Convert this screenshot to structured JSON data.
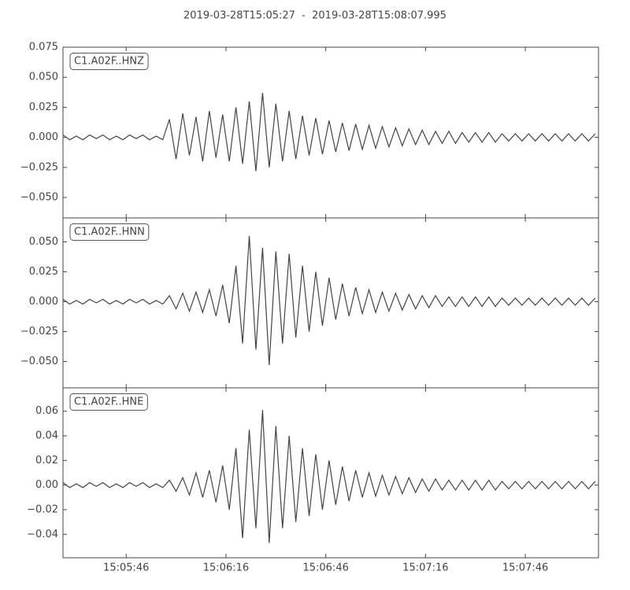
{
  "title": "2019-03-28T15:05:27  -  2019-03-28T15:08:07.995",
  "chart_data": [
    {
      "type": "line",
      "label": "C1.A02F..HNZ",
      "x": [
        54327,
        54329,
        54331,
        54333,
        54335,
        54337,
        54339,
        54341,
        54343,
        54345,
        54347,
        54349,
        54351,
        54353,
        54355,
        54357,
        54359,
        54361,
        54363,
        54365,
        54367,
        54369,
        54371,
        54373,
        54375,
        54377,
        54379,
        54381,
        54383,
        54385,
        54387,
        54389,
        54391,
        54393,
        54395,
        54397,
        54399,
        54401,
        54403,
        54405,
        54407,
        54409,
        54411,
        54413,
        54415,
        54417,
        54419,
        54421,
        54423,
        54425,
        54427,
        54429,
        54431,
        54433,
        54435,
        54437,
        54439,
        54441,
        54443,
        54445,
        54447,
        54449,
        54451,
        54453,
        54455,
        54457,
        54459,
        54461,
        54463,
        54465,
        54467,
        54469,
        54471,
        54473,
        54475,
        54477,
        54479,
        54481,
        54483,
        54485,
        54487
      ],
      "series": [
        {
          "color": "#444444",
          "values": [
            0.002,
            -0.002,
            0.001,
            -0.002,
            0.002,
            -0.001,
            0.002,
            -0.002,
            0.001,
            -0.002,
            0.002,
            -0.001,
            0.002,
            -0.002,
            0.001,
            -0.002,
            0.015,
            -0.018,
            0.02,
            -0.015,
            0.017,
            -0.02,
            0.022,
            -0.017,
            0.019,
            -0.02,
            0.025,
            -0.022,
            0.03,
            -0.028,
            0.037,
            -0.025,
            0.028,
            -0.02,
            0.022,
            -0.018,
            0.018,
            -0.015,
            0.016,
            -0.014,
            0.014,
            -0.012,
            0.012,
            -0.011,
            0.011,
            -0.01,
            0.01,
            -0.009,
            0.009,
            -0.008,
            0.008,
            -0.007,
            0.007,
            -0.006,
            0.006,
            -0.006,
            0.005,
            -0.005,
            0.005,
            -0.005,
            0.004,
            -0.004,
            0.004,
            -0.004,
            0.004,
            -0.004,
            0.003,
            -0.003,
            0.003,
            -0.003,
            0.003,
            -0.003,
            0.003,
            -0.003,
            0.003,
            -0.003,
            0.003,
            -0.003,
            0.003,
            -0.003,
            0.003
          ]
        }
      ],
      "xlim": [
        54327,
        54488
      ],
      "ylim": [
        -0.067,
        0.075
      ],
      "yticks": [
        {
          "value": -0.05,
          "label": "−0.050"
        },
        {
          "value": -0.025,
          "label": "−0.025"
        },
        {
          "value": 0,
          "label": "0.000"
        },
        {
          "value": 0.025,
          "label": "0.025"
        },
        {
          "value": 0.05,
          "label": "0.050"
        },
        {
          "value": 0.075,
          "label": "0.075"
        }
      ]
    },
    {
      "type": "line",
      "label": "C1.A02F..HNN",
      "x": [
        54327,
        54329,
        54331,
        54333,
        54335,
        54337,
        54339,
        54341,
        54343,
        54345,
        54347,
        54349,
        54351,
        54353,
        54355,
        54357,
        54359,
        54361,
        54363,
        54365,
        54367,
        54369,
        54371,
        54373,
        54375,
        54377,
        54379,
        54381,
        54383,
        54385,
        54387,
        54389,
        54391,
        54393,
        54395,
        54397,
        54399,
        54401,
        54403,
        54405,
        54407,
        54409,
        54411,
        54413,
        54415,
        54417,
        54419,
        54421,
        54423,
        54425,
        54427,
        54429,
        54431,
        54433,
        54435,
        54437,
        54439,
        54441,
        54443,
        54445,
        54447,
        54449,
        54451,
        54453,
        54455,
        54457,
        54459,
        54461,
        54463,
        54465,
        54467,
        54469,
        54471,
        54473,
        54475,
        54477,
        54479,
        54481,
        54483,
        54485,
        54487
      ],
      "series": [
        {
          "color": "#444444",
          "values": [
            0.002,
            -0.002,
            0.001,
            -0.002,
            0.002,
            -0.001,
            0.002,
            -0.002,
            0.001,
            -0.002,
            0.002,
            -0.001,
            0.002,
            -0.002,
            0.001,
            -0.002,
            0.005,
            -0.006,
            0.007,
            -0.008,
            0.008,
            -0.009,
            0.01,
            -0.012,
            0.014,
            -0.018,
            0.03,
            -0.035,
            0.055,
            -0.04,
            0.045,
            -0.053,
            0.042,
            -0.035,
            0.04,
            -0.03,
            0.03,
            -0.025,
            0.025,
            -0.02,
            0.02,
            -0.015,
            0.015,
            -0.012,
            0.012,
            -0.01,
            0.01,
            -0.009,
            0.008,
            -0.008,
            0.007,
            -0.007,
            0.006,
            -0.006,
            0.005,
            -0.005,
            0.005,
            -0.004,
            0.004,
            -0.004,
            0.004,
            -0.004,
            0.004,
            -0.004,
            0.004,
            -0.004,
            0.003,
            -0.003,
            0.003,
            -0.003,
            0.003,
            -0.003,
            0.003,
            -0.003,
            0.003,
            -0.003,
            0.003,
            -0.003,
            0.003,
            -0.003,
            0.003
          ]
        }
      ],
      "xlim": [
        54327,
        54488
      ],
      "ylim": [
        -0.072,
        0.07
      ],
      "yticks": [
        {
          "value": -0.05,
          "label": "−0.050"
        },
        {
          "value": -0.025,
          "label": "−0.025"
        },
        {
          "value": 0,
          "label": "0.000"
        },
        {
          "value": 0.025,
          "label": "0.025"
        },
        {
          "value": 0.05,
          "label": "0.050"
        }
      ]
    },
    {
      "type": "line",
      "label": "C1.A02F..HNE",
      "x": [
        54327,
        54329,
        54331,
        54333,
        54335,
        54337,
        54339,
        54341,
        54343,
        54345,
        54347,
        54349,
        54351,
        54353,
        54355,
        54357,
        54359,
        54361,
        54363,
        54365,
        54367,
        54369,
        54371,
        54373,
        54375,
        54377,
        54379,
        54381,
        54383,
        54385,
        54387,
        54389,
        54391,
        54393,
        54395,
        54397,
        54399,
        54401,
        54403,
        54405,
        54407,
        54409,
        54411,
        54413,
        54415,
        54417,
        54419,
        54421,
        54423,
        54425,
        54427,
        54429,
        54431,
        54433,
        54435,
        54437,
        54439,
        54441,
        54443,
        54445,
        54447,
        54449,
        54451,
        54453,
        54455,
        54457,
        54459,
        54461,
        54463,
        54465,
        54467,
        54469,
        54471,
        54473,
        54475,
        54477,
        54479,
        54481,
        54483,
        54485,
        54487
      ],
      "series": [
        {
          "color": "#444444",
          "values": [
            0.002,
            -0.002,
            0.001,
            -0.002,
            0.002,
            -0.001,
            0.002,
            -0.002,
            0.001,
            -0.002,
            0.002,
            -0.001,
            0.002,
            -0.002,
            0.001,
            -0.002,
            0.004,
            -0.005,
            0.006,
            -0.008,
            0.01,
            -0.01,
            0.012,
            -0.014,
            0.016,
            -0.02,
            0.03,
            -0.043,
            0.045,
            -0.035,
            0.061,
            -0.047,
            0.048,
            -0.035,
            0.04,
            -0.03,
            0.03,
            -0.025,
            0.025,
            -0.02,
            0.02,
            -0.016,
            0.015,
            -0.013,
            0.012,
            -0.01,
            0.01,
            -0.009,
            0.008,
            -0.008,
            0.007,
            -0.007,
            0.006,
            -0.006,
            0.005,
            -0.005,
            0.005,
            -0.004,
            0.004,
            -0.004,
            0.004,
            -0.004,
            0.004,
            -0.004,
            0.004,
            -0.004,
            0.003,
            -0.003,
            0.003,
            -0.003,
            0.003,
            -0.003,
            0.003,
            -0.003,
            0.003,
            -0.003,
            0.003,
            -0.003,
            0.003,
            -0.003,
            0.003
          ]
        }
      ],
      "xlim": [
        54327,
        54488
      ],
      "ylim": [
        -0.059,
        0.079
      ],
      "yticks": [
        {
          "value": -0.04,
          "label": "−0.04"
        },
        {
          "value": -0.02,
          "label": "−0.02"
        },
        {
          "value": 0,
          "label": "0.00"
        },
        {
          "value": 0.02,
          "label": "0.02"
        },
        {
          "value": 0.04,
          "label": "0.04"
        },
        {
          "value": 0.06,
          "label": "0.06"
        }
      ],
      "xticks": [
        {
          "value": 54346,
          "label": "15:05:46"
        },
        {
          "value": 54376,
          "label": "15:06:16"
        },
        {
          "value": 54406,
          "label": "15:06:46"
        },
        {
          "value": 54436,
          "label": "15:07:16"
        },
        {
          "value": 54466,
          "label": "15:07:46"
        }
      ]
    }
  ]
}
